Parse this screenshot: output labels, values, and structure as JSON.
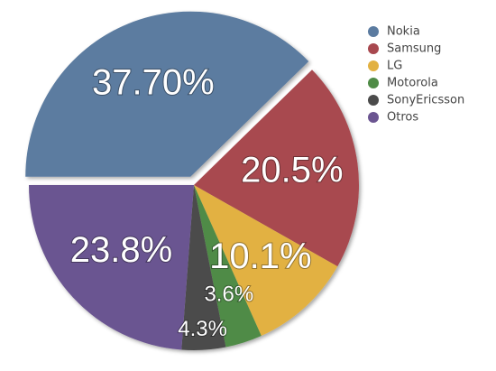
{
  "chart_data": {
    "type": "pie",
    "categories": [
      "Nokia",
      "Samsung",
      "LG",
      "Motorola",
      "SonyEricsson",
      "Otros"
    ],
    "values": [
      37.7,
      20.5,
      10.1,
      3.6,
      4.3,
      23.8
    ],
    "value_labels": [
      "37.70%",
      "20.5%",
      "10.1%",
      "3.6%",
      "4.3%",
      "23.8%"
    ],
    "colors": [
      "#5b7ba0",
      "#a8484f",
      "#e2b142",
      "#4f8b46",
      "#4b4b4b",
      "#6b5591"
    ],
    "legend": "top-right"
  }
}
